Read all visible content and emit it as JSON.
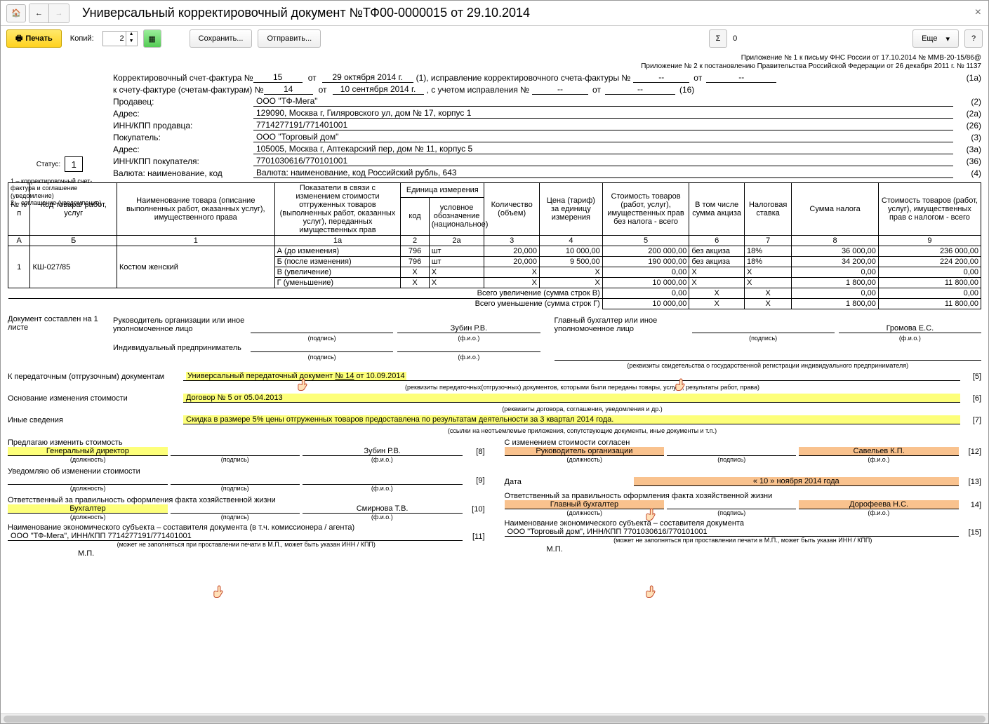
{
  "title": "Универсальный корректировочный документ №ТФ00-0000015 от 29.10.2014",
  "toolbar": {
    "print": "Печать",
    "copies_label": "Копий:",
    "copies_value": "2",
    "save": "Сохранить...",
    "send": "Отправить...",
    "sigma": "Σ",
    "sigma_value": "0",
    "more": "Еще",
    "help": "?"
  },
  "appendix": {
    "line1": "Приложение № 1 к письму ФНС России от 17.10.2014 № ММВ-20-15/86@",
    "line2": "Приложение № 2 к постановлению Правительства Российской Федерации от 26 декабря 2011 г. № 1137"
  },
  "header": {
    "row1_label": "Корректировочный счет-фактура №",
    "row1_no": "15",
    "row1_from": "от",
    "row1_date": "29 октября 2014 г.",
    "row1_note": "(1),  исправление корректировочного счета-фактуры №",
    "row1_dash1": "--",
    "row1_dash2": "--",
    "row1_code": "(1а)",
    "row2_label": "к счету-фактуре (счетам-фактурам) №",
    "row2_no": "14",
    "row2_date": "10 сентября 2014 г.",
    "row2_note": ",     с учетом исправления №",
    "row2_dash1": "--",
    "row2_dash2": "--",
    "row2_code": "(16)"
  },
  "status": {
    "label": "Статус:",
    "value": "1",
    "legend": "1 – корректировочный счет-фактура и соглашение (уведомление)\n2 – соглашение (уведомление)"
  },
  "parties": [
    {
      "label": "Продавец:",
      "value": "ООО \"ТФ-Мега\"",
      "code": "(2)"
    },
    {
      "label": "Адрес:",
      "value": "129090, Москва г, Гиляровского ул, дом № 17, корпус 1",
      "code": "(2а)"
    },
    {
      "label": "ИНН/КПП продавца:",
      "value": "7714277191/771401001",
      "code": "(26)"
    },
    {
      "label": "Покупатель:",
      "value": "ООО \"Торговый дом\"",
      "code": "(3)"
    },
    {
      "label": "Адрес:",
      "value": "105005, Москва г, Аптекарский пер, дом № 11, корпус 5",
      "code": "(3а)"
    },
    {
      "label": "ИНН/КПП покупателя:",
      "value": "7701030616/770101001",
      "code": "(36)"
    },
    {
      "label": "Валюта: наименование, код",
      "value": "Валюта: наименование, код Российский рубль, 643",
      "code": "(4)"
    }
  ],
  "table": {
    "headers": {
      "no": "№ п/п",
      "code": "Код товара/ работ, услуг",
      "name": "Наименование товара (описание выполненных работ, оказанных услуг), имущественного права",
      "indicators": "Показатели в связи с изменением стоимости отгруженных товаров (выполненных работ, оказанных услуг), переданных имущественных прав",
      "unit": "Единица измерения",
      "unit_code": "код",
      "unit_name": "условное обозначение (национальное)",
      "qty": "Количество (объем)",
      "price": "Цена (тариф) за единицу измерения",
      "cost_wo_tax": "Стоимость товаров (работ, услуг), имущественных прав без налога - всего",
      "excise": "В том числе сумма акциза",
      "tax_rate": "Налоговая ставка",
      "tax_sum": "Сумма налога",
      "cost_w_tax": "Стоимость товаров (работ, услуг), имущественных прав с налогом - всего"
    },
    "colnums": [
      "А",
      "Б",
      "1",
      "1а",
      "2",
      "2а",
      "3",
      "4",
      "5",
      "6",
      "7",
      "8",
      "9"
    ],
    "row": {
      "no": "1",
      "code": "КШ-027/85",
      "name": "Костюм женский",
      "lines": [
        {
          "ind": "А (до изменения)",
          "ucode": "796",
          "uname": "шт",
          "qty": "20,000",
          "price": "10 000,00",
          "cost": "200 000,00",
          "exc": "без акциза",
          "rate": "18%",
          "tax": "36 000,00",
          "total": "236 000,00"
        },
        {
          "ind": "Б (после изменения)",
          "ucode": "796",
          "uname": "шт",
          "qty": "20,000",
          "price": "9 500,00",
          "cost": "190 000,00",
          "exc": "без акциза",
          "rate": "18%",
          "tax": "34 200,00",
          "total": "224 200,00"
        },
        {
          "ind": "В (увеличение)",
          "ucode": "Х",
          "uname": "Х",
          "qty": "Х",
          "price": "Х",
          "cost": "0,00",
          "exc": "Х",
          "rate": "Х",
          "tax": "0,00",
          "total": "0,00"
        },
        {
          "ind": "Г (уменьшение)",
          "ucode": "Х",
          "uname": "Х",
          "qty": "Х",
          "price": "Х",
          "cost": "10 000,00",
          "exc": "Х",
          "rate": "Х",
          "tax": "1 800,00",
          "total": "11 800,00"
        }
      ],
      "totals": [
        {
          "label": "Всего увеличение (сумма строк В)",
          "cost": "0,00",
          "exc": "Х",
          "rate": "Х",
          "tax": "0,00",
          "total": "0,00"
        },
        {
          "label": "Всего уменьшение (сумма строк Г)",
          "cost": "10 000,00",
          "exc": "Х",
          "rate": "Х",
          "tax": "1 800,00",
          "total": "11 800,00"
        }
      ]
    }
  },
  "sign": {
    "doc_on": "Документ составлен на 1 листе",
    "director": "Руководитель организации или иное уполномоченное лицо",
    "accountant": "Главный бухгалтер или иное уполномоченное лицо",
    "ip": "Индивидуальный предприниматель",
    "sub_sign": "(подпись)",
    "sub_fio": "(ф.и.о.)",
    "sub_req": "(реквизиты свидетельства о государственной  регистрации индивидуального предпринимателя)",
    "fio1": "Зубин Р.В.",
    "fio2": "Громова Е.С."
  },
  "refs": {
    "r5_label": "К передаточным (отгрузочным) документам",
    "r5_val": "Универсальный передаточный документ № 14 от 10.09.2014",
    "r5_hint": "(реквизиты передаточных(отгрузочных) документов, которыми были переданы товары, услуги, результаты работ, права)",
    "r6_label": "Основание изменения стоимости",
    "r6_val": "Договор № 5 от 05.04.2013",
    "r6_hint": "(реквизиты договора, соглашения, уведомления и др.)",
    "r7_label": "Иные сведения",
    "r7_val": "Скидка в размере 5% цены отгруженных товаров предоставлена по результатам деятельности за 3 квартал 2014 года.",
    "r7_hint": "(ссылки на неотъемлемые приложения, сопутствующие документы, иные документы и т.п.)"
  },
  "left": {
    "propose": "Предлагаю изменить стоимость",
    "pos1": "Генеральный директор",
    "fio1": "Зубин Р.В.",
    "notify": "Уведомляю об изменении стоимости",
    "resp": "Ответственный за правильность оформления факта хозяйственной жизни",
    "pos2": "Бухгалтер",
    "fio2": "Смирнова Т.В.",
    "econ": "Наименование экономического субъекта – составителя документа (в т.ч. комиссионера / агента)",
    "econ_val": "ООО \"ТФ-Мега\", ИНН/КПП 7714277191/771401001",
    "mp_hint": "(может не заполняться при проставлении печати в М.П., может быть указан ИНН / КПП)",
    "mp": "М.П."
  },
  "right": {
    "agree": "С изменением стоимости согласен",
    "pos1": "Руководитель организации",
    "fio1": "Савельев К.П.",
    "date_label": "Дата",
    "date_val": "«  10  »   ноября    2014   года",
    "resp": "Ответственный за правильность оформления факта хозяйственной жизни",
    "pos2": "Главный бухгалтер",
    "fio2": "Дорофеева Н.С.",
    "econ": "Наименование экономического субъекта – составителя документа",
    "econ_val": "ООО \"Торговый дом\", ИНН/КПП 7701030616/770101001",
    "mp_hint": "(может не заполняться при проставлении печати в М.П., может быть указан ИНН / КПП)",
    "mp": "М.П."
  },
  "sub": {
    "pos": "(должность)",
    "sign": "(подпись)",
    "fio": "(ф.и.о.)"
  },
  "codes": {
    "c5": "[5]",
    "c6": "[6]",
    "c7": "[7]",
    "c8": "[8]",
    "c9": "[9]",
    "c10": "[10]",
    "c11": "[11]",
    "c12": "[12]",
    "c13": "[13]",
    "c14": "14]",
    "c15": "[15]"
  }
}
